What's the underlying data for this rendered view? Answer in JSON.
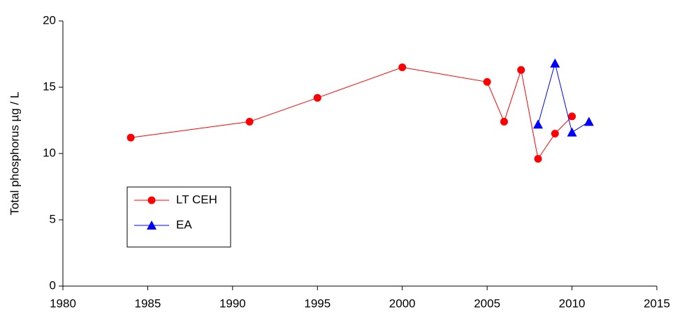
{
  "chart_data": {
    "type": "line",
    "y_label": "Total phosphorus µg / L",
    "series": [
      {
        "name": "LT CEH",
        "color": "#ff0000",
        "marker": "circle",
        "x": [
          1984,
          1991,
          1995,
          2000,
          2005,
          2006,
          2007,
          2008,
          2009,
          2010
        ],
        "values": [
          11.2,
          12.4,
          14.2,
          16.5,
          15.4,
          12.4,
          16.3,
          9.6,
          11.5,
          12.8
        ]
      },
      {
        "name": "EA",
        "color": "#0000ff",
        "marker": "triangle",
        "x": [
          2008,
          2009,
          2010,
          2011
        ],
        "values": [
          12.2,
          16.8,
          11.6,
          12.4
        ]
      }
    ],
    "xlim": [
      1980,
      2015
    ],
    "xticks": [
      1980,
      1985,
      1990,
      1995,
      2000,
      2005,
      2010,
      2015
    ],
    "ylim": [
      0,
      20
    ],
    "yticks": [
      0,
      5,
      10,
      15,
      20
    ],
    "grid": false,
    "legend": "left"
  }
}
